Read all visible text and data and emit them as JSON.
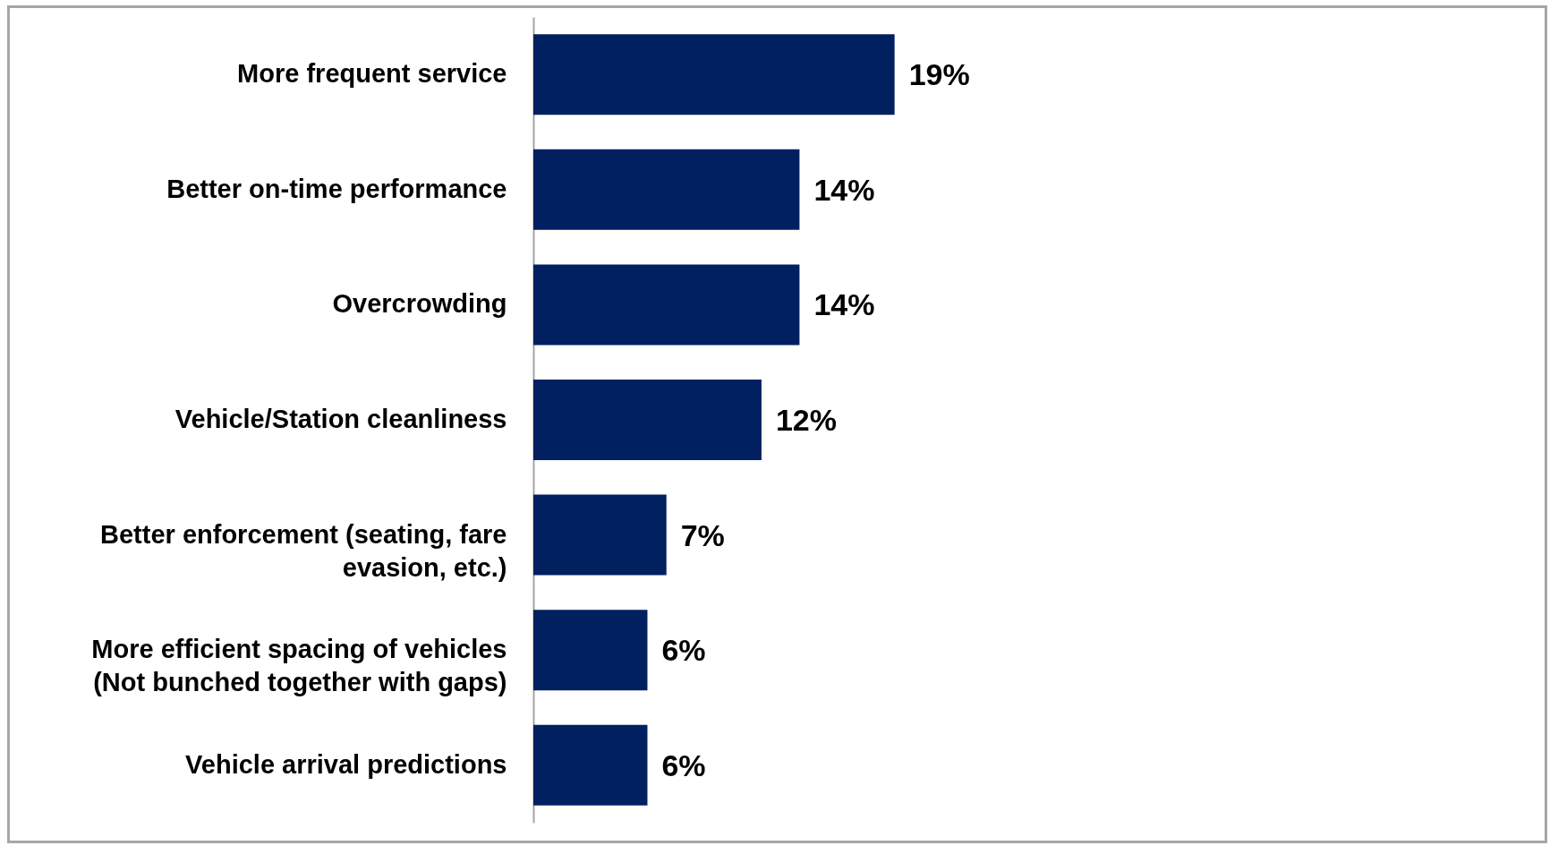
{
  "chart_data": {
    "type": "bar",
    "orientation": "horizontal",
    "categories": [
      "More frequent service",
      "Better on-time performance",
      "Overcrowding",
      "Vehicle/Station cleanliness",
      "Better enforcement (seating, fare evasion, etc.)",
      "More efficient spacing of vehicles (Not bunched together with gaps)",
      "Vehicle arrival predictions"
    ],
    "values": [
      19,
      14,
      14,
      12,
      7,
      6,
      6
    ],
    "value_labels": [
      "19%",
      "14%",
      "14%",
      "12%",
      "7%",
      "6%",
      "6%"
    ],
    "color": "#002060",
    "tick_labels": "y"
  }
}
